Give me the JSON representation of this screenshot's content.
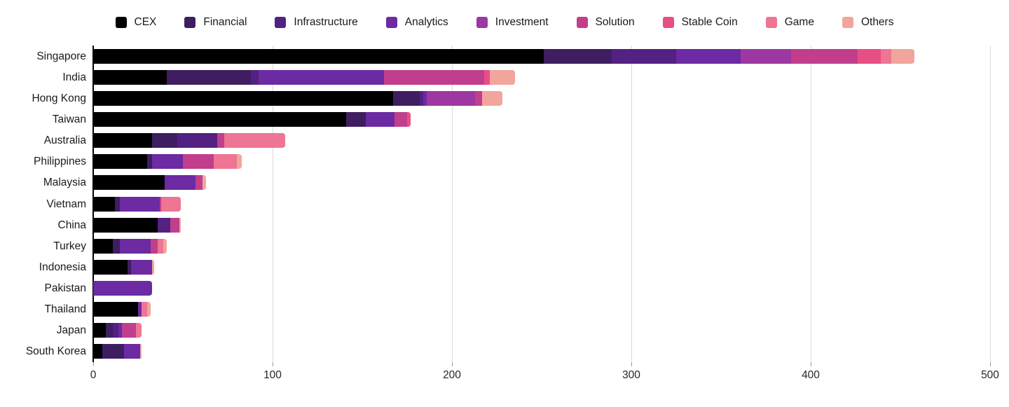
{
  "chart_data": {
    "type": "bar",
    "orientation": "horizontal",
    "stacked": true,
    "title": "",
    "xlabel": "",
    "ylabel": "",
    "xlim": [
      0,
      500
    ],
    "x_ticks": [
      0,
      100,
      200,
      300,
      400,
      500
    ],
    "grid": true,
    "legend_position": "top",
    "categories": [
      "Singapore",
      "India",
      "Hong Kong",
      "Taiwan",
      "Australia",
      "Philippines",
      "Malaysia",
      "Vietnam",
      "China",
      "Turkey",
      "Indonesia",
      "Pakistan",
      "Thailand",
      "Japan",
      "South Korea"
    ],
    "series": [
      {
        "name": "CEX",
        "color": "#000000",
        "values": [
          251,
          41,
          167,
          141,
          33,
          30,
          40,
          12,
          36,
          11,
          19,
          0,
          25,
          7,
          5
        ]
      },
      {
        "name": "Financial",
        "color": "#3f1d61",
        "values": [
          38,
          47,
          15,
          11,
          14,
          3,
          0,
          3,
          0,
          4,
          2,
          0,
          0,
          4,
          12
        ]
      },
      {
        "name": "Infrastructure",
        "color": "#522182",
        "values": [
          36,
          4,
          2,
          0,
          22,
          0,
          0,
          0,
          7,
          0,
          0,
          0,
          0,
          3,
          0
        ]
      },
      {
        "name": "Analytics",
        "color": "#6c2aa3",
        "values": [
          36,
          70,
          2,
          16,
          0,
          17,
          17,
          22,
          0,
          17,
          12,
          33,
          2,
          2,
          9
        ]
      },
      {
        "name": "Investment",
        "color": "#9d37a1",
        "values": [
          28,
          0,
          27,
          0,
          0,
          0,
          0,
          0,
          0,
          0,
          0,
          0,
          0,
          0,
          0
        ]
      },
      {
        "name": "Solution",
        "color": "#c13e8c",
        "values": [
          37,
          56,
          4,
          7,
          4,
          17,
          4,
          1,
          5,
          4,
          0,
          0,
          0,
          8,
          0
        ]
      },
      {
        "name": "Stable Coin",
        "color": "#e84e86",
        "values": [
          13,
          3,
          0,
          2,
          0,
          0,
          0,
          0,
          0,
          0,
          0,
          0,
          0,
          0,
          0
        ]
      },
      {
        "name": "Game",
        "color": "#ee7593",
        "values": [
          6,
          0,
          0,
          0,
          34,
          13,
          0,
          11,
          0,
          3,
          0,
          0,
          3,
          3,
          0
        ]
      },
      {
        "name": "Others",
        "color": "#f1a59d",
        "values": [
          13,
          14,
          11,
          0,
          0,
          3,
          2,
          0,
          1,
          2,
          1,
          0,
          2,
          0,
          1
        ]
      }
    ],
    "totals": [
      458,
      235,
      228,
      177,
      107,
      83,
      63,
      49,
      49,
      41,
      34,
      33,
      32,
      27,
      27
    ],
    "axis_colors": {
      "gridline": "#d9d9d9",
      "y_axis_line": "#000000",
      "tick_label": "#262626"
    }
  }
}
